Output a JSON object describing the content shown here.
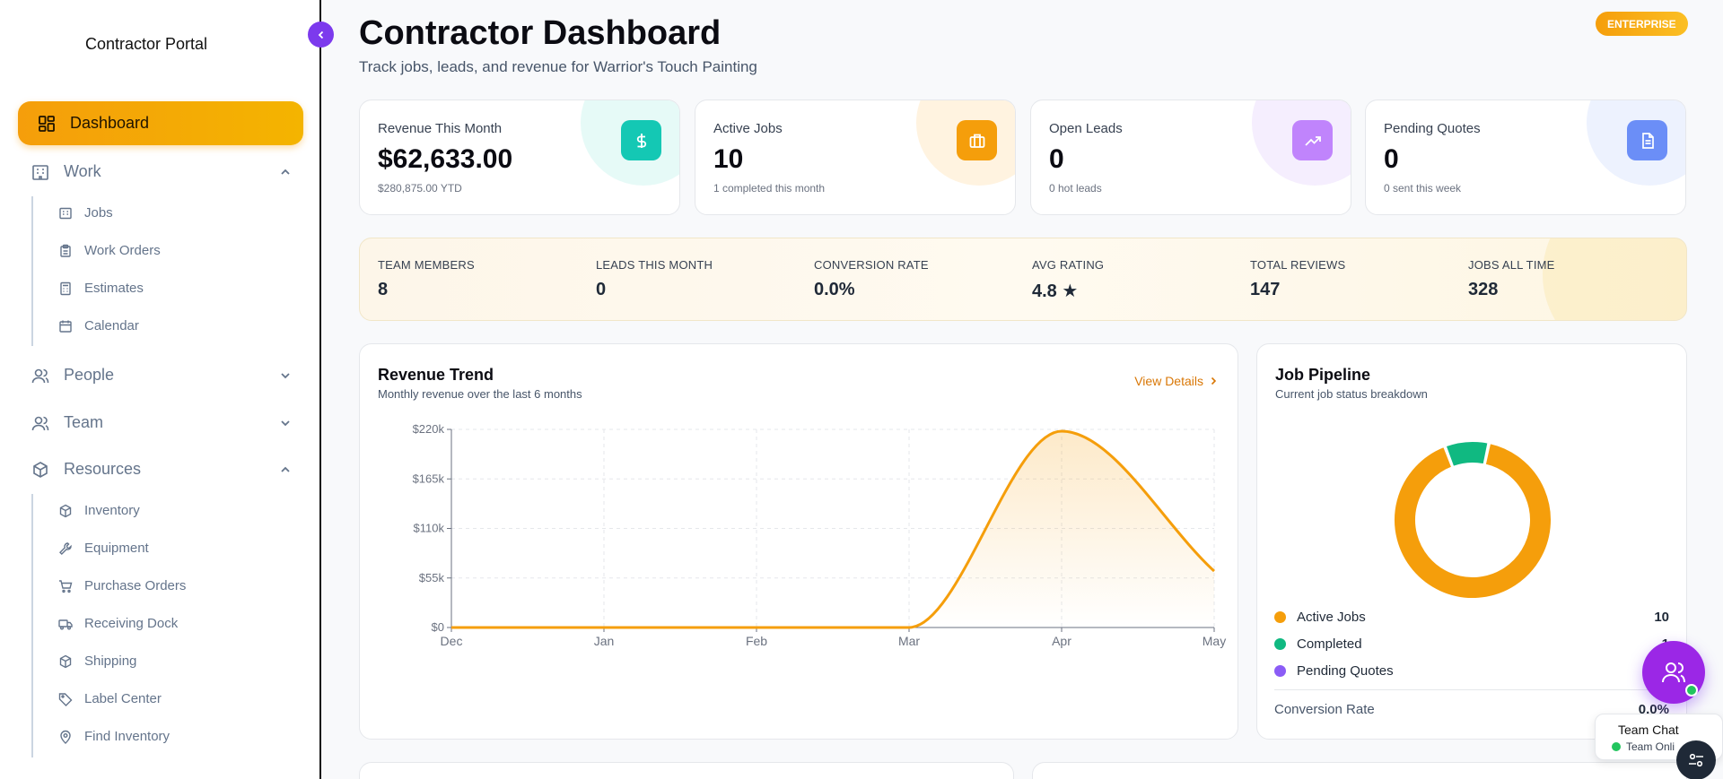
{
  "sidebar": {
    "brand": "Contractor Portal",
    "active": {
      "label": "Dashboard",
      "icon": "dashboard-grid-icon"
    },
    "sections": [
      {
        "label": "Work",
        "icon": "building-icon",
        "expanded": true,
        "items": [
          {
            "label": "Jobs",
            "icon": "building-icon"
          },
          {
            "label": "Work Orders",
            "icon": "clipboard-icon"
          },
          {
            "label": "Estimates",
            "icon": "calculator-icon"
          },
          {
            "label": "Calendar",
            "icon": "calendar-icon"
          }
        ]
      },
      {
        "label": "People",
        "icon": "users-icon",
        "expanded": false
      },
      {
        "label": "Team",
        "icon": "users-icon",
        "expanded": false
      },
      {
        "label": "Resources",
        "icon": "package-icon",
        "expanded": true,
        "items": [
          {
            "label": "Inventory",
            "icon": "package-icon"
          },
          {
            "label": "Equipment",
            "icon": "wrench-icon"
          },
          {
            "label": "Purchase Orders",
            "icon": "cart-icon"
          },
          {
            "label": "Receiving Dock",
            "icon": "truck-icon"
          },
          {
            "label": "Shipping",
            "icon": "package-icon"
          },
          {
            "label": "Label Center",
            "icon": "tag-icon"
          },
          {
            "label": "Find Inventory",
            "icon": "map-pin-icon"
          }
        ]
      }
    ]
  },
  "header": {
    "title": "Contractor Dashboard",
    "subtitle": "Track jobs, leads, and revenue for Warrior's Touch Painting",
    "plan_badge": "ENTERPRISE"
  },
  "stats": [
    {
      "label": "Revenue This Month",
      "value": "$62,633.00",
      "note": "$280,875.00 YTD",
      "icon": "dollar-icon",
      "color": "#14c8b4",
      "blob": "#e6faf7"
    },
    {
      "label": "Active Jobs",
      "value": "10",
      "note": "1 completed this month",
      "icon": "briefcase-icon",
      "color": "#f59e0b",
      "blob": "#fff3e0"
    },
    {
      "label": "Open Leads",
      "value": "0",
      "note": "0 hot leads",
      "icon": "trending-up-icon",
      "color": "#c084fc",
      "blob": "#f5eefe"
    },
    {
      "label": "Pending Quotes",
      "value": "0",
      "note": "0 sent this week",
      "icon": "document-icon",
      "color": "#6b8ef7",
      "blob": "#edf2fe"
    }
  ],
  "metrics": [
    {
      "label": "TEAM MEMBERS",
      "value": "8"
    },
    {
      "label": "LEADS THIS MONTH",
      "value": "0"
    },
    {
      "label": "CONVERSION RATE",
      "value": "0.0%"
    },
    {
      "label": "AVG RATING",
      "value": "4.8 ★"
    },
    {
      "label": "TOTAL REVIEWS",
      "value": "147"
    },
    {
      "label": "JOBS ALL TIME",
      "value": "328"
    }
  ],
  "revenue_card": {
    "title": "Revenue Trend",
    "subtitle": "Monthly revenue over the last 6 months",
    "link": "View Details"
  },
  "pipeline_card": {
    "title": "Job Pipeline",
    "subtitle": "Current job status breakdown",
    "legend": [
      {
        "label": "Active Jobs",
        "value": "10",
        "color": "#f59e0b"
      },
      {
        "label": "Completed",
        "value": "1",
        "color": "#10b981"
      },
      {
        "label": "Pending Quotes",
        "value": "",
        "color": "#8b5cf6"
      }
    ],
    "conversion_label": "Conversion Rate",
    "conversion_value": "0.0%"
  },
  "chat": {
    "title": "Team Chat",
    "status": "Team Onli"
  },
  "chart_data": [
    {
      "type": "area",
      "x": [
        "Dec",
        "Jan",
        "Feb",
        "Mar",
        "Apr",
        "May"
      ],
      "series": [
        {
          "values": [
            0,
            0,
            0,
            0,
            218000,
            62633
          ]
        }
      ],
      "yticks": [
        "$0",
        "$55k",
        "$110k",
        "$165k",
        "$220k"
      ],
      "ylim": [
        0,
        220000
      ],
      "grid": true,
      "color": "#f59e0b"
    },
    {
      "type": "pie",
      "categories": [
        "Active Jobs",
        "Completed",
        "Pending Quotes"
      ],
      "values": [
        10,
        1,
        0
      ],
      "colors": [
        "#f59e0b",
        "#10b981",
        "#8b5cf6"
      ],
      "donut": true
    }
  ]
}
